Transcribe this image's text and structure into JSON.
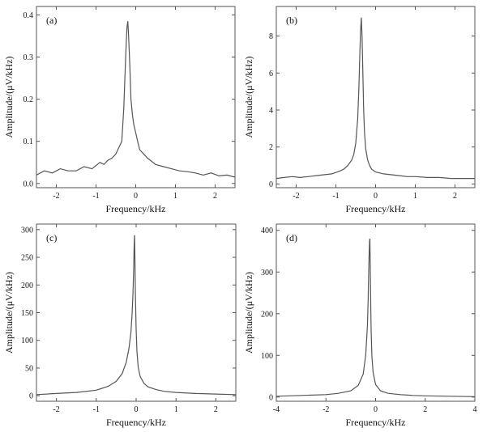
{
  "chart_data": [
    {
      "type": "line",
      "panel_label": "(a)",
      "xlabel": "Frequency/kHz",
      "ylabel": "Amplitude/(μV/kHz)",
      "xlim": [
        -2.5,
        2.5
      ],
      "ylim": [
        -0.01,
        0.42
      ],
      "xticks": [
        -2,
        -1,
        0,
        1,
        2
      ],
      "yticks": [
        0.0,
        0.1,
        0.2,
        0.3,
        0.4
      ],
      "ytick_labels": [
        "0.0",
        "0.1",
        "0.2",
        "0.3",
        "0.4"
      ],
      "series": [
        {
          "color": "#555555",
          "x": [
            -2.5,
            -2.3,
            -2.1,
            -1.9,
            -1.7,
            -1.5,
            -1.3,
            -1.1,
            -0.9,
            -0.8,
            -0.7,
            -0.6,
            -0.5,
            -0.45,
            -0.4,
            -0.35,
            -0.3,
            -0.27,
            -0.24,
            -0.22,
            -0.2,
            -0.18,
            -0.15,
            -0.12,
            -0.08,
            -0.05,
            0.0,
            0.05,
            0.1,
            0.2,
            0.3,
            0.5,
            0.7,
            0.9,
            1.1,
            1.3,
            1.5,
            1.7,
            1.9,
            2.1,
            2.3,
            2.5
          ],
          "y": [
            0.02,
            0.03,
            0.025,
            0.035,
            0.03,
            0.03,
            0.04,
            0.035,
            0.05,
            0.045,
            0.055,
            0.06,
            0.07,
            0.08,
            0.09,
            0.1,
            0.18,
            0.26,
            0.33,
            0.37,
            0.385,
            0.35,
            0.28,
            0.2,
            0.16,
            0.14,
            0.12,
            0.1,
            0.08,
            0.07,
            0.06,
            0.045,
            0.04,
            0.035,
            0.03,
            0.028,
            0.025,
            0.02,
            0.025,
            0.018,
            0.02,
            0.015
          ]
        }
      ]
    },
    {
      "type": "line",
      "panel_label": "(b)",
      "xlabel": "Frequency/kHz",
      "ylabel": "Amplitude/(μV/kHz)",
      "xlim": [
        -2.5,
        2.5
      ],
      "ylim": [
        -0.2,
        9.6
      ],
      "xticks": [
        -2,
        -1,
        0,
        1,
        2
      ],
      "yticks": [
        0,
        2,
        4,
        6,
        8
      ],
      "ytick_labels": [
        "0",
        "2",
        "4",
        "6",
        "8"
      ],
      "series": [
        {
          "color": "#555555",
          "x": [
            -2.5,
            -2.3,
            -2.1,
            -1.9,
            -1.7,
            -1.5,
            -1.3,
            -1.1,
            -0.9,
            -0.8,
            -0.7,
            -0.6,
            -0.55,
            -0.5,
            -0.45,
            -0.42,
            -0.4,
            -0.38,
            -0.36,
            -0.34,
            -0.32,
            -0.3,
            -0.28,
            -0.25,
            -0.2,
            -0.15,
            -0.1,
            0.0,
            0.2,
            0.4,
            0.6,
            0.8,
            1.0,
            1.3,
            1.6,
            1.9,
            2.2,
            2.5
          ],
          "y": [
            0.3,
            0.35,
            0.4,
            0.35,
            0.4,
            0.45,
            0.5,
            0.55,
            0.7,
            0.8,
            1.0,
            1.3,
            1.6,
            2.2,
            3.5,
            5.2,
            6.8,
            8.2,
            9.0,
            8.0,
            6.0,
            4.0,
            2.8,
            1.9,
            1.3,
            1.0,
            0.8,
            0.65,
            0.55,
            0.5,
            0.45,
            0.4,
            0.4,
            0.35,
            0.35,
            0.3,
            0.3,
            0.3
          ]
        }
      ]
    },
    {
      "type": "line",
      "panel_label": "(c)",
      "xlabel": "Frequency/kHz",
      "ylabel": "Amplitude/(μV/kHz)",
      "xlim": [
        -2.5,
        2.5
      ],
      "ylim": [
        -10,
        310
      ],
      "xticks": [
        -2,
        -1,
        0,
        1,
        2
      ],
      "yticks": [
        0,
        50,
        100,
        150,
        200,
        250,
        300
      ],
      "ytick_labels": [
        "0",
        "50",
        "100",
        "150",
        "200",
        "250",
        "300"
      ],
      "series": [
        {
          "color": "#555555",
          "x": [
            -2.5,
            -2.0,
            -1.5,
            -1.0,
            -0.7,
            -0.5,
            -0.35,
            -0.25,
            -0.18,
            -0.13,
            -0.1,
            -0.08,
            -0.06,
            -0.05,
            -0.04,
            -0.03,
            -0.02,
            0.0,
            0.02,
            0.05,
            0.1,
            0.2,
            0.3,
            0.5,
            0.7,
            1.0,
            1.5,
            2.0,
            2.5
          ],
          "y": [
            2,
            4,
            6,
            10,
            17,
            26,
            40,
            60,
            85,
            115,
            150,
            185,
            230,
            270,
            290,
            250,
            190,
            120,
            80,
            52,
            35,
            22,
            16,
            11,
            8,
            6,
            4,
            3,
            2
          ]
        }
      ]
    },
    {
      "type": "line",
      "panel_label": "(d)",
      "xlabel": "Frequency/kHz",
      "ylabel": "Amplitude/(μV/kHz)",
      "xlim": [
        -4,
        4
      ],
      "ylim": [
        -10,
        415
      ],
      "xticks": [
        -4,
        -2,
        0,
        2,
        4
      ],
      "yticks": [
        0,
        100,
        200,
        300,
        400
      ],
      "ytick_labels": [
        "0",
        "100",
        "200",
        "300",
        "400"
      ],
      "series": [
        {
          "color": "#555555",
          "x": [
            -4.0,
            -3.0,
            -2.0,
            -1.5,
            -1.0,
            -0.7,
            -0.5,
            -0.4,
            -0.33,
            -0.3,
            -0.28,
            -0.26,
            -0.24,
            -0.23,
            -0.22,
            -0.2,
            -0.18,
            -0.15,
            -0.1,
            0.0,
            0.2,
            0.5,
            1.0,
            1.5,
            2.0,
            3.0,
            4.0
          ],
          "y": [
            2,
            4,
            6,
            9,
            15,
            28,
            55,
            100,
            170,
            230,
            290,
            340,
            375,
            380,
            330,
            240,
            160,
            100,
            60,
            30,
            15,
            9,
            6,
            4,
            3,
            2,
            1
          ]
        }
      ]
    }
  ]
}
